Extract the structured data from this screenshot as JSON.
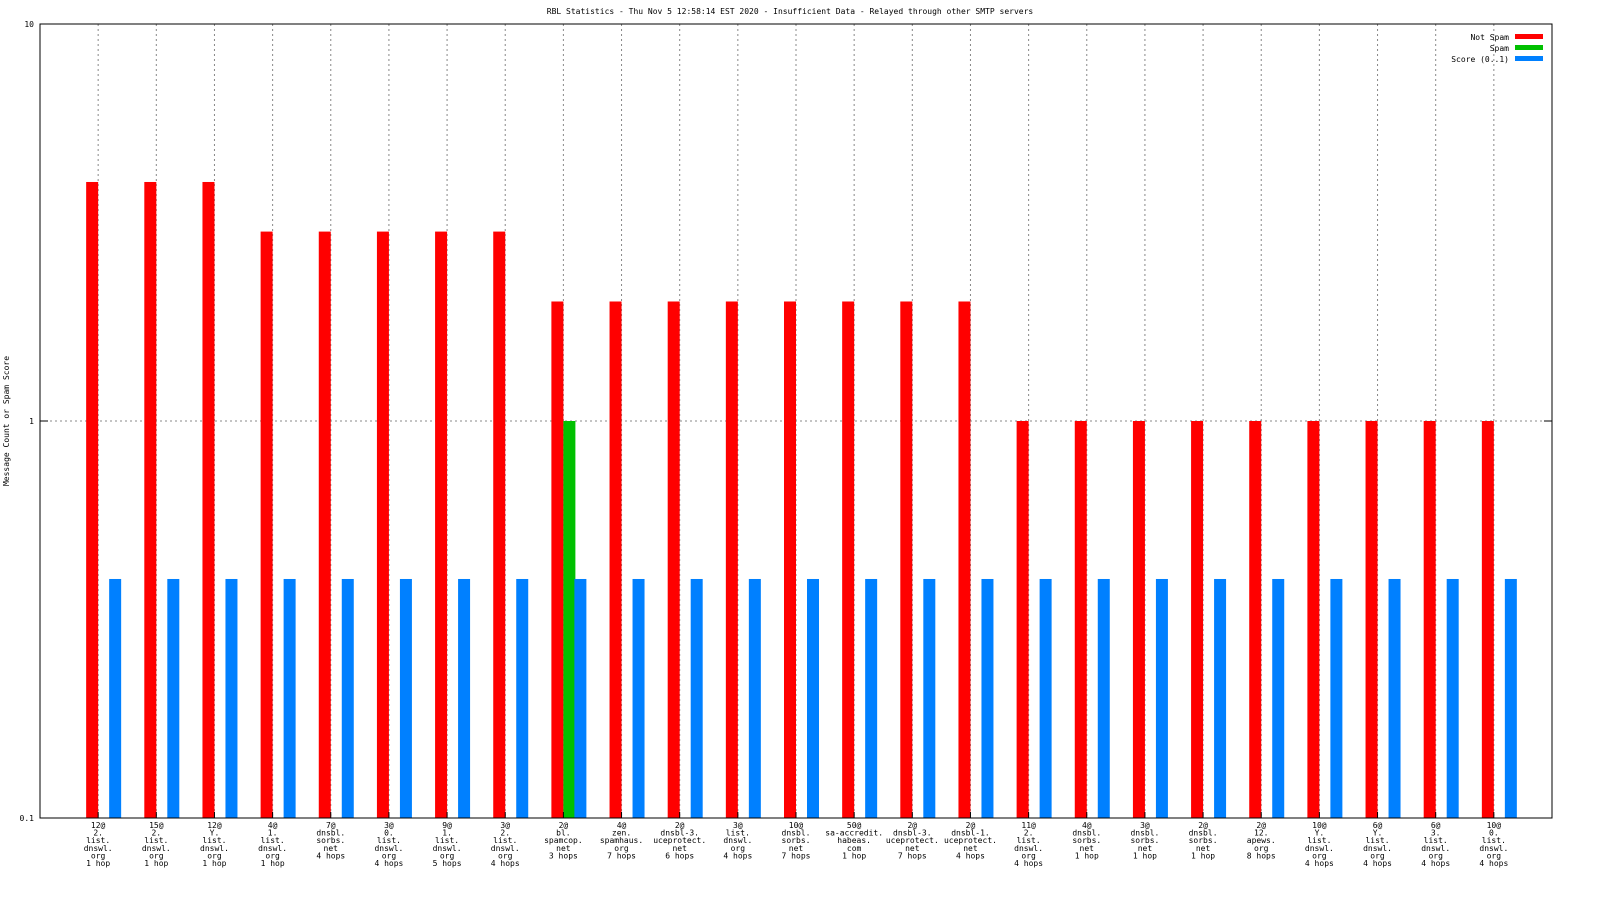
{
  "chart_data": {
    "type": "bar",
    "title": "RBL Statistics - Thu Nov  5 12:58:14 EST 2020 - Insufficient Data - Relayed through other SMTP servers",
    "y_label": "Message Count or Spam Score",
    "log_scale": true,
    "ylim": [
      0.1,
      10
    ],
    "yticks": [
      0.1,
      1,
      10
    ],
    "grid": true,
    "legend": "top-right",
    "categories": [
      [
        "12@",
        "2.",
        "list.",
        "dnswl.",
        "org",
        "1 hop"
      ],
      [
        "15@",
        "2.",
        "list.",
        "dnswl.",
        "org",
        "1 hop"
      ],
      [
        "12@",
        "Y.",
        "list.",
        "dnswl.",
        "org",
        "1 hop"
      ],
      [
        "4@",
        "1.",
        "list.",
        "dnswl.",
        "org",
        "1 hop"
      ],
      [
        "7@",
        "dnsbl.",
        "sorbs.",
        "net",
        "4 hops"
      ],
      [
        "3@",
        "0.",
        "list.",
        "dnswl.",
        "org",
        "4 hops"
      ],
      [
        "9@",
        "1.",
        "list.",
        "dnswl.",
        "org",
        "5 hops"
      ],
      [
        "3@",
        "2.",
        "list.",
        "dnswl.",
        "org",
        "4 hops"
      ],
      [
        "2@",
        "bl.",
        "spamcop.",
        "net",
        "3 hops"
      ],
      [
        "4@",
        "zen.",
        "spamhaus.",
        "org",
        "7 hops"
      ],
      [
        "2@",
        "dnsbl-3.",
        "uceprotect.",
        "net",
        "6 hops"
      ],
      [
        "3@",
        "list.",
        "dnswl.",
        "org",
        "4 hops"
      ],
      [
        "10@",
        "dnsbl.",
        "sorbs.",
        "net",
        "7 hops"
      ],
      [
        "50@",
        "sa-accredit.",
        "habeas.",
        "com",
        "1 hop"
      ],
      [
        "2@",
        "dnsbl-3.",
        "uceprotect.",
        "net",
        "7 hops"
      ],
      [
        "2@",
        "dnsbl-1.",
        "uceprotect.",
        "net",
        "4 hops"
      ],
      [
        "11@",
        "2.",
        "list.",
        "dnswl.",
        "org",
        "4 hops"
      ],
      [
        "4@",
        "dnsbl.",
        "sorbs.",
        "net",
        "1 hop"
      ],
      [
        "3@",
        "dnsbl.",
        "sorbs.",
        "net",
        "1 hop"
      ],
      [
        "2@",
        "dnsbl.",
        "sorbs.",
        "net",
        "1 hop"
      ],
      [
        "2@",
        "12.",
        "apews.",
        "org",
        "8 hops"
      ],
      [
        "10@",
        "Y.",
        "list.",
        "dnswl.",
        "org",
        "4 hops"
      ],
      [
        "6@",
        "Y.",
        "list.",
        "dnswl.",
        "org",
        "4 hops"
      ],
      [
        "6@",
        "3.",
        "list.",
        "dnswl.",
        "org",
        "4 hops"
      ],
      [
        "10@",
        "0.",
        "list.",
        "dnswl.",
        "org",
        "4 hops"
      ]
    ],
    "series": [
      {
        "name": "Not Spam",
        "color": "#ff0000",
        "values": [
          4,
          4,
          4,
          3,
          3,
          3,
          3,
          3,
          2,
          2,
          2,
          2,
          2,
          2,
          2,
          2,
          1,
          1,
          1,
          1,
          1,
          1,
          1,
          1,
          1
        ]
      },
      {
        "name": "Spam",
        "color": "#00c000",
        "values": [
          null,
          null,
          null,
          null,
          null,
          null,
          null,
          null,
          1,
          null,
          null,
          null,
          null,
          null,
          null,
          null,
          null,
          null,
          null,
          null,
          null,
          null,
          null,
          null,
          null
        ]
      },
      {
        "name": "Score (0..1)",
        "color": "#0080ff",
        "values": [
          0.4,
          0.4,
          0.4,
          0.4,
          0.4,
          0.4,
          0.4,
          0.4,
          0.4,
          0.4,
          0.4,
          0.4,
          0.4,
          0.4,
          0.4,
          0.4,
          0.4,
          0.4,
          0.4,
          0.4,
          0.4,
          0.4,
          0.4,
          0.4,
          0.4
        ]
      }
    ]
  }
}
